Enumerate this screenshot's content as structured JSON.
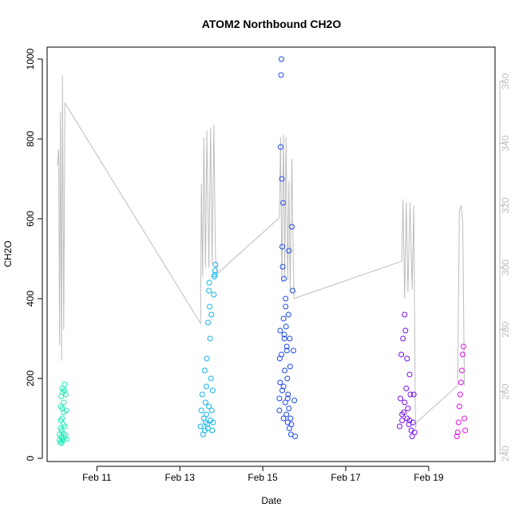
{
  "chart_data": {
    "type": "scatter",
    "title": "ATOM2 Northbound CH2O",
    "xlabel": "Date",
    "ylabel": "CH2O",
    "y2label": "",
    "x_ticks": [
      "Feb 11",
      "Feb 13",
      "Feb 15",
      "Feb 17",
      "Feb 19"
    ],
    "x_tick_values": [
      11,
      13,
      15,
      17,
      19
    ],
    "xlim": [
      9.8,
      20.6
    ],
    "ylim": [
      -8,
      1030
    ],
    "y_ticks": [
      0,
      200,
      400,
      600,
      800,
      1000
    ],
    "y2lim": [
      237.5,
      371
    ],
    "y2_ticks": [
      240,
      260,
      280,
      300,
      320,
      340,
      360
    ],
    "grid": false,
    "colors": {
      "grey_line": "#bebebe",
      "axis": "#000000",
      "seg1": "#1de9b6",
      "seg2": "#11b4f0",
      "seg3": "#1f4be6",
      "seg4": "#7711f0",
      "seg5": "#e211e6"
    },
    "series": [
      {
        "color": "#1de9b6",
        "x": [
          10.1,
          10.1,
          10.12,
          10.12,
          10.13,
          10.13,
          10.14,
          10.14,
          10.15,
          10.15,
          10.16,
          10.16,
          10.17,
          10.17,
          10.18,
          10.18,
          10.19,
          10.19,
          10.2,
          10.2,
          10.21,
          10.22,
          10.22,
          10.23,
          10.24,
          10.25,
          10.26,
          10.27
        ],
        "y": [
          45,
          60,
          40,
          75,
          95,
          130,
          55,
          155,
          38,
          70,
          50,
          100,
          125,
          175,
          45,
          165,
          62,
          85,
          115,
          140,
          52,
          170,
          185,
          80,
          58,
          160,
          120,
          48
        ]
      },
      {
        "color": "#11b4f0",
        "x": [
          13.5,
          13.52,
          13.54,
          13.56,
          13.58,
          13.6,
          13.6,
          13.62,
          13.62,
          13.64,
          13.64,
          13.65,
          13.66,
          13.68,
          13.68,
          13.7,
          13.7,
          13.71,
          13.72,
          13.73,
          13.74,
          13.75,
          13.76,
          13.77,
          13.78,
          13.79,
          13.8,
          13.82,
          13.83,
          13.84,
          13.85,
          13.86
        ],
        "y": [
          80,
          120,
          160,
          60,
          100,
          220,
          70,
          140,
          90,
          180,
          110,
          250,
          85,
          340,
          75,
          420,
          130,
          440,
          380,
          300,
          95,
          200,
          360,
          120,
          70,
          170,
          90,
          410,
          455,
          460,
          470,
          485
        ]
      },
      {
        "color": "#1f4be6",
        "x": [
          15.4,
          15.41,
          15.42,
          15.43,
          15.44,
          15.45,
          15.46,
          15.47,
          15.48,
          15.49,
          15.5,
          15.5,
          15.51,
          15.52,
          15.53,
          15.54,
          15.55,
          15.56,
          15.57,
          15.58,
          15.59,
          15.6,
          15.61,
          15.62,
          15.63,
          15.64,
          15.65,
          15.66,
          15.67,
          15.68,
          15.69,
          15.7,
          15.72,
          15.74,
          15.76,
          15.78,
          15.4,
          15.42,
          15.45,
          15.47,
          15.5,
          15.52,
          15.55,
          15.58,
          15.6,
          15.63
        ],
        "y": [
          150,
          250,
          320,
          780,
          960,
          1000,
          700,
          530,
          480,
          640,
          350,
          180,
          450,
          300,
          220,
          140,
          400,
          330,
          110,
          270,
          200,
          90,
          160,
          360,
          125,
          75,
          300,
          230,
          100,
          60,
          85,
          580,
          420,
          270,
          145,
          55,
          120,
          190,
          260,
          170,
          100,
          310,
          380,
          280,
          150,
          520
        ]
      },
      {
        "color": "#7711f0",
        "x": [
          18.3,
          18.32,
          18.34,
          18.36,
          18.38,
          18.4,
          18.42,
          18.44,
          18.46,
          18.48,
          18.5,
          18.52,
          18.54,
          18.56,
          18.58,
          18.6,
          18.62,
          18.64,
          18.66,
          18.36,
          18.42,
          18.48,
          18.54
        ],
        "y": [
          80,
          150,
          260,
          95,
          300,
          115,
          360,
          320,
          175,
          100,
          125,
          85,
          210,
          160,
          70,
          55,
          90,
          160,
          65,
          110,
          140,
          250,
          95
        ]
      },
      {
        "color": "#e211e6",
        "x": [
          19.68,
          19.7,
          19.72,
          19.74,
          19.76,
          19.78,
          19.8,
          19.82,
          19.84,
          19.86,
          19.88
        ],
        "y": [
          55,
          65,
          90,
          130,
          160,
          190,
          220,
          260,
          280,
          100,
          70
        ]
      }
    ],
    "secondary_line": {
      "color": "#bebebe",
      "x": [
        10.05,
        10.08,
        10.1,
        10.12,
        10.15,
        10.17,
        10.2,
        10.23,
        13.5,
        13.52,
        13.55,
        13.58,
        13.62,
        13.65,
        13.7,
        13.74,
        13.78,
        13.82,
        13.86,
        13.9,
        15.4,
        15.43,
        15.46,
        15.5,
        15.53,
        15.56,
        15.6,
        15.63,
        15.66,
        15.7,
        15.75,
        18.35,
        18.38,
        18.42,
        18.46,
        18.5,
        18.55,
        18.6,
        18.64,
        18.68,
        18.7,
        19.7,
        19.74,
        19.78,
        19.82,
        19.86
      ],
      "y": [
        333,
        338,
        275,
        350,
        270,
        362,
        280,
        353,
        282,
        327,
        297,
        342,
        300,
        344,
        300,
        345,
        301,
        346,
        303,
        298,
        316,
        342,
        295,
        343,
        296,
        342,
        296,
        328,
        292,
        335,
        290,
        302,
        322,
        290,
        321,
        292,
        321,
        293,
        320,
        248,
        250,
        262,
        318,
        320,
        315,
        262
      ]
    }
  }
}
